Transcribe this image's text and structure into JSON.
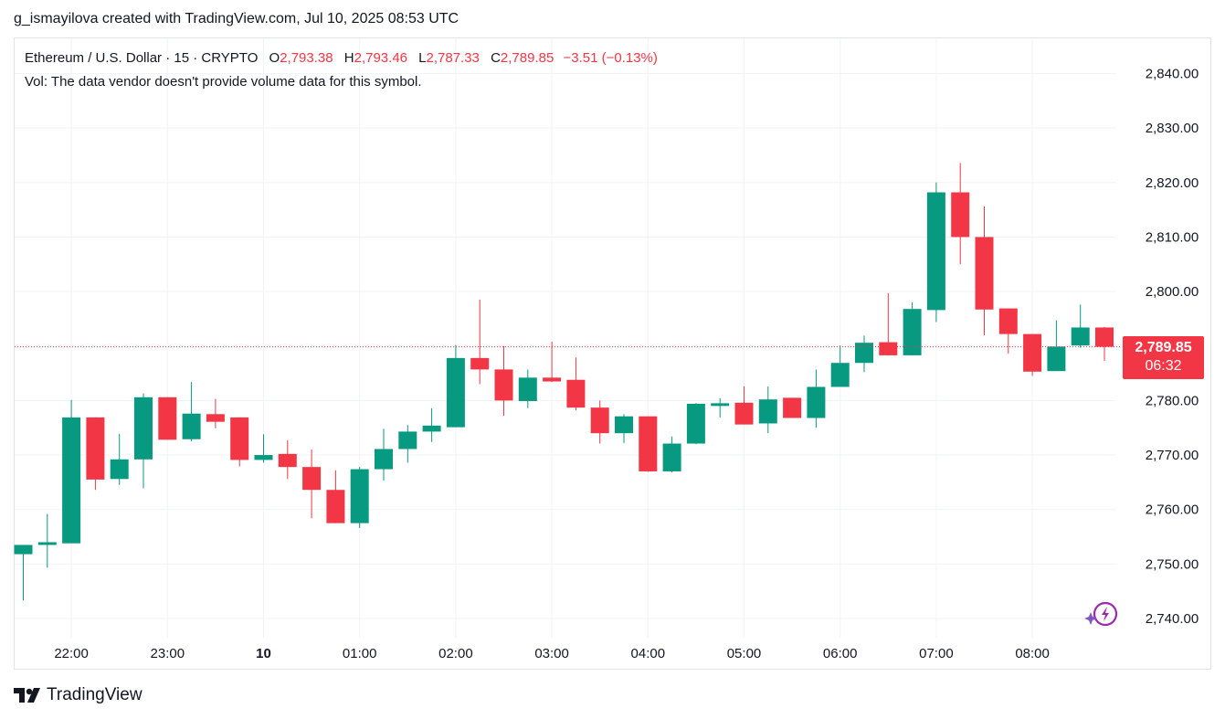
{
  "header": {
    "caption": "g_ismayilova created with TradingView.com, Jul 10, 2025 08:53 UTC"
  },
  "legend": {
    "symbol": "Ethereum / U.S. Dollar · 15 · CRYPTO",
    "open_label": "O",
    "open": "2,793.38",
    "high_label": "H",
    "high": "2,793.46",
    "low_label": "L",
    "low": "2,787.33",
    "close_label": "C",
    "close": "2,789.85",
    "change": "−3.51 (−0.13%)",
    "volume_note": "Vol: The data vendor doesn't provide volume data for this symbol."
  },
  "price_tag": {
    "price": "2,789.85",
    "countdown": "06:32"
  },
  "footer": {
    "brand": "TradingView"
  },
  "colors": {
    "up": "#089981",
    "down": "#f23645",
    "grid": "#f0f3fa",
    "text": "#131722"
  },
  "chart_data": {
    "type": "candlestick",
    "title": "Ethereum / U.S. Dollar · 15 · CRYPTO",
    "interval_minutes": 15,
    "ylim": [
      2736,
      2843
    ],
    "y_ticks": [
      2740,
      2750,
      2760,
      2770,
      2780,
      2790,
      2800,
      2810,
      2820,
      2830,
      2840
    ],
    "y_tick_labels": [
      "2,740.00",
      "2,750.00",
      "2,760.00",
      "2,770.00",
      "2,780.00",
      "2,790.00",
      "2,800.00",
      "2,810.00",
      "2,820.00",
      "2,830.00",
      "2,840.00"
    ],
    "x_labels": [
      {
        "label": "22:00",
        "index": 2,
        "bold": false
      },
      {
        "label": "23:00",
        "index": 6,
        "bold": false
      },
      {
        "label": "10",
        "index": 10,
        "bold": true
      },
      {
        "label": "01:00",
        "index": 14,
        "bold": false
      },
      {
        "label": "02:00",
        "index": 18,
        "bold": false
      },
      {
        "label": "03:00",
        "index": 22,
        "bold": false
      },
      {
        "label": "04:00",
        "index": 26,
        "bold": false
      },
      {
        "label": "05:00",
        "index": 30,
        "bold": false
      },
      {
        "label": "06:00",
        "index": 34,
        "bold": false
      },
      {
        "label": "07:00",
        "index": 38,
        "bold": false
      },
      {
        "label": "08:00",
        "index": 42,
        "bold": false
      }
    ],
    "last_price": 2789.85,
    "candles": [
      {
        "o": 2751.8,
        "h": 2753.5,
        "l": 2743.3,
        "c": 2753.5
      },
      {
        "o": 2753.5,
        "h": 2759.2,
        "l": 2749.3,
        "c": 2754.0
      },
      {
        "o": 2753.8,
        "h": 2780.1,
        "l": 2753.8,
        "c": 2776.9
      },
      {
        "o": 2776.9,
        "h": 2776.9,
        "l": 2763.6,
        "c": 2765.5
      },
      {
        "o": 2765.6,
        "h": 2773.9,
        "l": 2764.5,
        "c": 2769.2
      },
      {
        "o": 2769.2,
        "h": 2781.3,
        "l": 2763.9,
        "c": 2780.6
      },
      {
        "o": 2780.6,
        "h": 2780.6,
        "l": 2772.8,
        "c": 2772.8
      },
      {
        "o": 2772.9,
        "h": 2783.4,
        "l": 2772.5,
        "c": 2777.6
      },
      {
        "o": 2777.5,
        "h": 2780.3,
        "l": 2774.9,
        "c": 2776.1
      },
      {
        "o": 2776.9,
        "h": 2776.9,
        "l": 2767.9,
        "c": 2769.1
      },
      {
        "o": 2769.1,
        "h": 2773.8,
        "l": 2768.6,
        "c": 2770.0
      },
      {
        "o": 2770.2,
        "h": 2772.7,
        "l": 2765.6,
        "c": 2767.8
      },
      {
        "o": 2767.8,
        "h": 2771.0,
        "l": 2758.4,
        "c": 2763.6
      },
      {
        "o": 2763.6,
        "h": 2767.2,
        "l": 2757.5,
        "c": 2757.5
      },
      {
        "o": 2757.5,
        "h": 2767.8,
        "l": 2756.6,
        "c": 2767.4
      },
      {
        "o": 2767.4,
        "h": 2774.8,
        "l": 2765.3,
        "c": 2771.1
      },
      {
        "o": 2771.1,
        "h": 2775.5,
        "l": 2768.6,
        "c": 2774.3
      },
      {
        "o": 2774.3,
        "h": 2778.6,
        "l": 2772.4,
        "c": 2775.4
      },
      {
        "o": 2775.1,
        "h": 2790.2,
        "l": 2775.1,
        "c": 2787.8
      },
      {
        "o": 2787.8,
        "h": 2798.5,
        "l": 2783.0,
        "c": 2785.7
      },
      {
        "o": 2785.7,
        "h": 2790.0,
        "l": 2777.2,
        "c": 2780.0
      },
      {
        "o": 2779.9,
        "h": 2785.7,
        "l": 2778.6,
        "c": 2784.2
      },
      {
        "o": 2784.2,
        "h": 2790.8,
        "l": 2783.4,
        "c": 2783.5
      },
      {
        "o": 2783.8,
        "h": 2787.9,
        "l": 2778.2,
        "c": 2778.7
      },
      {
        "o": 2778.7,
        "h": 2780.0,
        "l": 2772.1,
        "c": 2774.0
      },
      {
        "o": 2774.0,
        "h": 2777.5,
        "l": 2772.2,
        "c": 2777.1
      },
      {
        "o": 2777.1,
        "h": 2777.1,
        "l": 2766.9,
        "c": 2767.0
      },
      {
        "o": 2767.0,
        "h": 2773.4,
        "l": 2766.8,
        "c": 2772.1
      },
      {
        "o": 2772.1,
        "h": 2779.5,
        "l": 2772.0,
        "c": 2779.4
      },
      {
        "o": 2779.0,
        "h": 2780.4,
        "l": 2776.9,
        "c": 2779.5
      },
      {
        "o": 2779.6,
        "h": 2782.6,
        "l": 2775.6,
        "c": 2775.6
      },
      {
        "o": 2775.8,
        "h": 2782.6,
        "l": 2774.0,
        "c": 2780.2
      },
      {
        "o": 2780.5,
        "h": 2780.5,
        "l": 2776.8,
        "c": 2776.8
      },
      {
        "o": 2776.8,
        "h": 2785.7,
        "l": 2775.0,
        "c": 2782.5
      },
      {
        "o": 2782.5,
        "h": 2790.1,
        "l": 2782.5,
        "c": 2786.9
      },
      {
        "o": 2786.9,
        "h": 2791.9,
        "l": 2785.2,
        "c": 2790.6
      },
      {
        "o": 2790.7,
        "h": 2799.7,
        "l": 2788.3,
        "c": 2788.3
      },
      {
        "o": 2788.3,
        "h": 2798.0,
        "l": 2788.3,
        "c": 2796.8
      },
      {
        "o": 2796.6,
        "h": 2820.0,
        "l": 2794.4,
        "c": 2818.2
      },
      {
        "o": 2818.2,
        "h": 2823.6,
        "l": 2805.0,
        "c": 2810.0
      },
      {
        "o": 2810.0,
        "h": 2815.6,
        "l": 2792.0,
        "c": 2796.7
      },
      {
        "o": 2796.9,
        "h": 2796.9,
        "l": 2788.6,
        "c": 2792.2
      },
      {
        "o": 2792.2,
        "h": 2792.2,
        "l": 2784.5,
        "c": 2785.3
      },
      {
        "o": 2785.4,
        "h": 2794.7,
        "l": 2785.4,
        "c": 2789.9
      },
      {
        "o": 2790.1,
        "h": 2797.6,
        "l": 2789.7,
        "c": 2793.4
      },
      {
        "o": 2793.4,
        "h": 2793.5,
        "l": 2787.3,
        "c": 2789.85
      }
    ]
  }
}
